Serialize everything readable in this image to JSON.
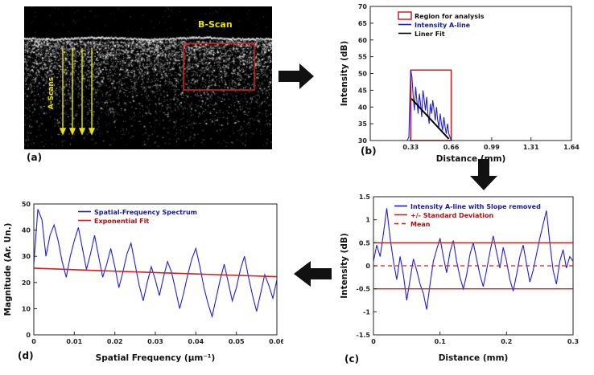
{
  "figure": {
    "panels": {
      "a": {
        "label": "(a)",
        "bscan_text": "B-Scan",
        "ascans_text": "A-Scans"
      },
      "b": {
        "label": "(b)"
      },
      "c": {
        "label": "(c)"
      },
      "d": {
        "label": "(d)"
      }
    },
    "colors": {
      "annotation_yellow": "#e8e400",
      "annotation_red": "#cc2222",
      "series_blue": "#2121cc",
      "fit_red": "#cc2222",
      "fit_black": "#000000"
    }
  },
  "chart_data": [
    {
      "id": "b",
      "type": "line",
      "title": "",
      "xlabel": "Distance (mm)",
      "ylabel": "Intensity (dB)",
      "xlim": [
        0,
        1.64
      ],
      "ylim": [
        30,
        70
      ],
      "xticks": [
        0.33,
        0.66,
        0.99,
        1.31,
        1.64
      ],
      "yticks": [
        30,
        35,
        40,
        45,
        50,
        55,
        60,
        65,
        70
      ],
      "grid": false,
      "legend_position": "top-inside",
      "legend": [
        {
          "label": "Region for analysis",
          "color": "#cc2222",
          "type": "rect",
          "text_color": "#111111"
        },
        {
          "label": "Intensity A-line",
          "color": "#2121cc",
          "type": "line",
          "text_color": "#1a1a99"
        },
        {
          "label": "Liner Fit",
          "color": "#000000",
          "type": "line",
          "text_color": "#111111"
        }
      ],
      "rects": [
        {
          "x0": 0.33,
          "y0": 30,
          "x1": 0.66,
          "y1": 51,
          "color": "#cc2222"
        }
      ],
      "series": [
        {
          "name": "Intensity A-line",
          "color": "#2121cc",
          "width": 1.1,
          "x": [
            0.3,
            0.315,
            0.325,
            0.33,
            0.34,
            0.35,
            0.36,
            0.37,
            0.38,
            0.39,
            0.4,
            0.41,
            0.42,
            0.43,
            0.44,
            0.45,
            0.46,
            0.47,
            0.48,
            0.49,
            0.5,
            0.51,
            0.52,
            0.53,
            0.54,
            0.55,
            0.56,
            0.57,
            0.58,
            0.59,
            0.6,
            0.61,
            0.62,
            0.63,
            0.64,
            0.65,
            0.66,
            0.68
          ],
          "y": [
            30,
            31,
            45,
            51,
            49,
            43,
            39,
            46,
            42,
            38,
            44,
            41,
            37,
            45,
            42,
            39,
            43,
            38,
            35,
            41,
            38,
            42,
            39,
            36,
            40,
            36,
            34,
            38,
            35,
            33,
            37,
            34,
            32,
            35,
            32,
            31,
            30,
            30
          ]
        },
        {
          "name": "Liner Fit",
          "color": "#000000",
          "width": 2,
          "x": [
            0.335,
            0.64
          ],
          "y": [
            42.5,
            30.5
          ]
        }
      ]
    },
    {
      "id": "c",
      "type": "line",
      "title": "",
      "xlabel": "Distance (mm)",
      "ylabel": "Intensity (dB)",
      "xlim": [
        0,
        0.3
      ],
      "ylim": [
        -1.5,
        1.5
      ],
      "xticks": [
        0,
        0.1,
        0.2,
        0.3
      ],
      "yticks": [
        -1.5,
        -1,
        -0.5,
        0,
        0.5,
        1,
        1.5
      ],
      "grid": false,
      "legend_position": "top-inside",
      "legend": [
        {
          "label": "Intensity A-line with Slope removed",
          "color": "#2121cc",
          "type": "line",
          "text_color": "#1a1a99"
        },
        {
          "label": "+/- Standard Deviation",
          "color": "#cc2222",
          "type": "line",
          "text_color": "#aa1111"
        },
        {
          "label": "Mean",
          "color": "#cc2222",
          "type": "line",
          "dash": "5,4",
          "text_color": "#aa1111"
        }
      ],
      "rects": [],
      "series": [
        {
          "name": "Intensity A-line with Slope removed",
          "color": "#2121cc",
          "width": 1.1,
          "x": [
            0,
            0.005,
            0.01,
            0.015,
            0.02,
            0.025,
            0.03,
            0.035,
            0.04,
            0.045,
            0.05,
            0.055,
            0.06,
            0.065,
            0.07,
            0.075,
            0.08,
            0.085,
            0.09,
            0.095,
            0.1,
            0.105,
            0.11,
            0.115,
            0.12,
            0.125,
            0.13,
            0.135,
            0.14,
            0.145,
            0.15,
            0.155,
            0.16,
            0.165,
            0.17,
            0.175,
            0.18,
            0.185,
            0.19,
            0.195,
            0.2,
            0.205,
            0.21,
            0.215,
            0.22,
            0.225,
            0.23,
            0.235,
            0.24,
            0.245,
            0.25,
            0.255,
            0.26,
            0.265,
            0.27,
            0.275,
            0.28,
            0.285,
            0.29,
            0.295,
            0.3
          ],
          "y": [
            0.1,
            0.45,
            0.2,
            0.7,
            1.25,
            0.6,
            0.1,
            -0.3,
            0.2,
            -0.2,
            -0.75,
            -0.3,
            0.15,
            -0.1,
            -0.4,
            -0.6,
            -0.95,
            -0.4,
            0.1,
            0.35,
            0.6,
            0.2,
            -0.15,
            0.3,
            0.55,
            0.1,
            -0.25,
            -0.5,
            -0.2,
            0.25,
            0.5,
            0.15,
            -0.2,
            -0.45,
            -0.1,
            0.3,
            0.65,
            0.3,
            -0.05,
            0.4,
            0.1,
            -0.3,
            -0.55,
            -0.2,
            0.2,
            0.45,
            0.05,
            -0.35,
            -0.1,
            0.25,
            0.6,
            0.9,
            1.2,
            0.5,
            -0.1,
            -0.4,
            0.1,
            0.35,
            -0.05,
            0.2,
            0.1
          ]
        },
        {
          "name": "+ Standard Deviation",
          "color": "#cc2222",
          "width": 1.4,
          "x": [
            0,
            0.3
          ],
          "y": [
            0.5,
            0.5
          ]
        },
        {
          "name": "- Standard Deviation",
          "color": "#cc2222",
          "width": 1.4,
          "x": [
            0,
            0.3
          ],
          "y": [
            -0.5,
            -0.5
          ]
        },
        {
          "name": "Mean",
          "color": "#cc2222",
          "width": 1.2,
          "dash": "5,4",
          "x": [
            0,
            0.3
          ],
          "y": [
            0,
            0
          ]
        }
      ]
    },
    {
      "id": "d",
      "type": "line",
      "title": "",
      "xlabel": "Spatial Frequency (μm⁻¹)",
      "ylabel": "Magnitude (Ar. Un.)",
      "xlim": [
        0,
        0.06
      ],
      "ylim": [
        0,
        50
      ],
      "xticks": [
        0,
        0.01,
        0.02,
        0.03,
        0.04,
        0.05,
        0.06
      ],
      "yticks": [
        0,
        10,
        20,
        30,
        40,
        50
      ],
      "grid": false,
      "legend_position": "top-inside",
      "legend": [
        {
          "label": "Spatial-Frequency Spectrum",
          "color": "#2121cc",
          "type": "line",
          "text_color": "#1a1a99"
        },
        {
          "label": "Exponential Fit",
          "color": "#cc2222",
          "type": "line",
          "text_color": "#aa1111"
        }
      ],
      "rects": [],
      "series": [
        {
          "name": "Spatial-Frequency Spectrum",
          "color": "#2121cc",
          "width": 1.1,
          "x": [
            0,
            0.001,
            0.002,
            0.003,
            0.004,
            0.005,
            0.006,
            0.007,
            0.008,
            0.009,
            0.01,
            0.011,
            0.012,
            0.013,
            0.014,
            0.015,
            0.016,
            0.017,
            0.018,
            0.019,
            0.02,
            0.021,
            0.022,
            0.023,
            0.024,
            0.025,
            0.026,
            0.027,
            0.028,
            0.029,
            0.03,
            0.031,
            0.032,
            0.033,
            0.034,
            0.035,
            0.036,
            0.037,
            0.038,
            0.039,
            0.04,
            0.041,
            0.042,
            0.043,
            0.044,
            0.045,
            0.046,
            0.047,
            0.048,
            0.049,
            0.05,
            0.051,
            0.052,
            0.053,
            0.054,
            0.055,
            0.056,
            0.057,
            0.058,
            0.059,
            0.06
          ],
          "y": [
            27,
            48,
            44,
            30,
            38,
            42,
            36,
            28,
            22,
            30,
            36,
            41,
            33,
            25,
            31,
            38,
            30,
            22,
            27,
            33,
            26,
            18,
            24,
            31,
            35,
            27,
            19,
            13,
            20,
            26,
            21,
            15,
            22,
            28,
            24,
            17,
            10,
            16,
            23,
            29,
            33,
            26,
            18,
            12,
            7,
            14,
            21,
            27,
            20,
            13,
            18,
            25,
            30,
            22,
            15,
            9,
            16,
            23,
            19,
            14,
            21
          ]
        },
        {
          "name": "Exponential Fit",
          "color": "#cc2222",
          "width": 1.6,
          "x": [
            0,
            0.015,
            0.03,
            0.045,
            0.06
          ],
          "y": [
            25.5,
            24.6,
            23.8,
            23.0,
            22.2
          ]
        }
      ]
    }
  ]
}
